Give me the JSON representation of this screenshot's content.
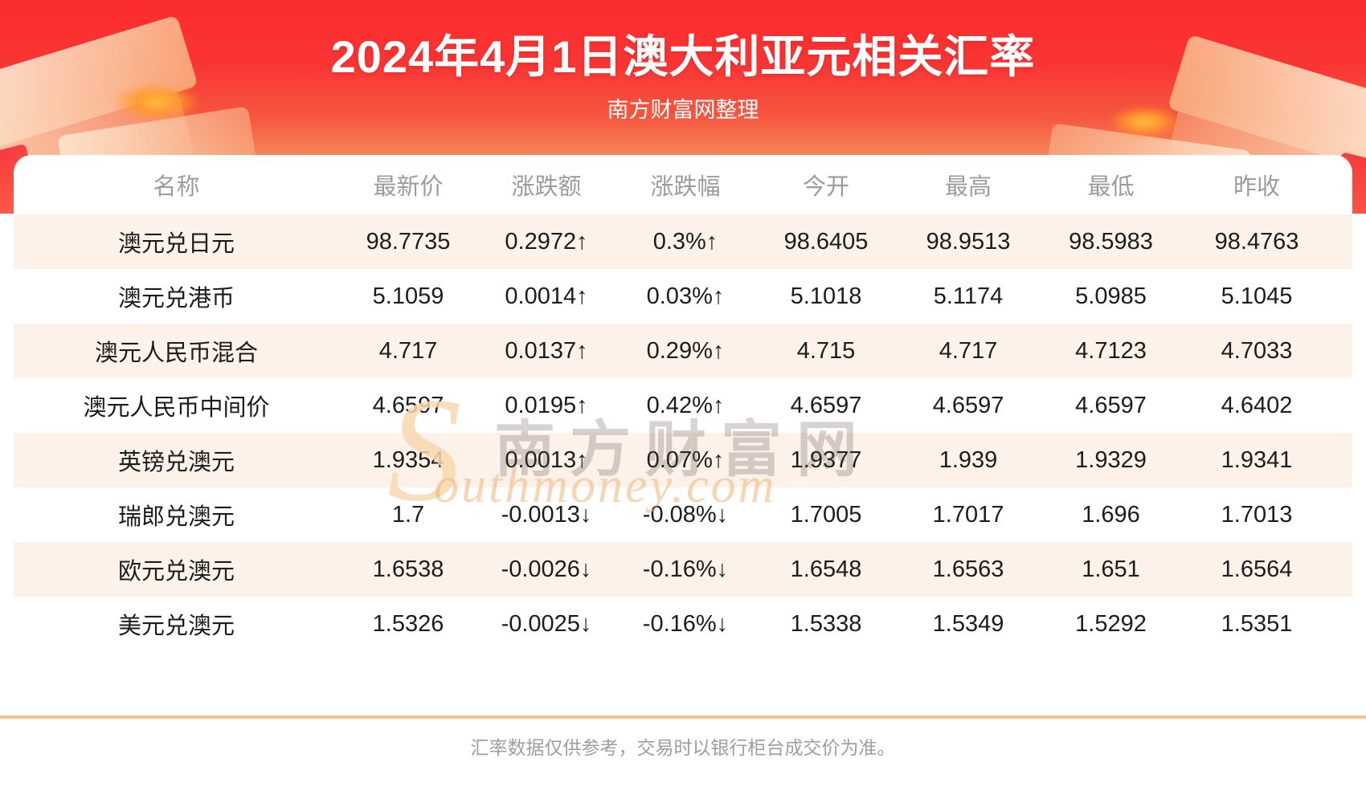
{
  "header": {
    "title": "2024年4月1日澳大利亚元相关汇率",
    "subtitle": "南方财富网整理"
  },
  "table": {
    "columns": [
      "名称",
      "最新价",
      "涨跌额",
      "涨跌幅",
      "今开",
      "最高",
      "最低",
      "昨收"
    ],
    "rows": [
      {
        "name": "澳元兑日元",
        "latest": "98.7735",
        "change": "0.2972↑",
        "change_pct": "0.3%↑",
        "open": "98.6405",
        "high": "98.9513",
        "low": "98.5983",
        "prev_close": "98.4763",
        "trend": "up"
      },
      {
        "name": "澳元兑港币",
        "latest": "5.1059",
        "change": "0.0014↑",
        "change_pct": "0.03%↑",
        "open": "5.1018",
        "high": "5.1174",
        "low": "5.0985",
        "prev_close": "5.1045",
        "trend": "up"
      },
      {
        "name": "澳元人民币混合",
        "latest": "4.717",
        "change": "0.0137↑",
        "change_pct": "0.29%↑",
        "open": "4.715",
        "high": "4.717",
        "low": "4.7123",
        "prev_close": "4.7033",
        "trend": "up"
      },
      {
        "name": "澳元人民币中间价",
        "latest": "4.6597",
        "change": "0.0195↑",
        "change_pct": "0.42%↑",
        "open": "4.6597",
        "high": "4.6597",
        "low": "4.6597",
        "prev_close": "4.6402",
        "trend": "up"
      },
      {
        "name": "英镑兑澳元",
        "latest": "1.9354",
        "change": "0.0013↑",
        "change_pct": "0.07%↑",
        "open": "1.9377",
        "high": "1.939",
        "low": "1.9329",
        "prev_close": "1.9341",
        "trend": "up"
      },
      {
        "name": "瑞郎兑澳元",
        "latest": "1.7",
        "change": "-0.0013↓",
        "change_pct": "-0.08%↓",
        "open": "1.7005",
        "high": "1.7017",
        "low": "1.696",
        "prev_close": "1.7013",
        "trend": "down"
      },
      {
        "name": "欧元兑澳元",
        "latest": "1.6538",
        "change": "-0.0026↓",
        "change_pct": "-0.16%↓",
        "open": "1.6548",
        "high": "1.6563",
        "low": "1.651",
        "prev_close": "1.6564",
        "trend": "down"
      },
      {
        "name": "美元兑澳元",
        "latest": "1.5326",
        "change": "-0.0025↓",
        "change_pct": "-0.16%↓",
        "open": "1.5338",
        "high": "1.5349",
        "low": "1.5292",
        "prev_close": "1.5351",
        "trend": "down"
      }
    ]
  },
  "chart_data": {
    "type": "table",
    "title": "2024年4月1日澳大利亚元相关汇率",
    "subtitle": "南方财富网整理",
    "columns": [
      "名称",
      "最新价",
      "涨跌额",
      "涨跌幅",
      "今开",
      "最高",
      "最低",
      "昨收"
    ],
    "rows": [
      [
        "澳元兑日元",
        98.7735,
        0.2972,
        "0.3%",
        98.6405,
        98.9513,
        98.5983,
        98.4763
      ],
      [
        "澳元兑港币",
        5.1059,
        0.0014,
        "0.03%",
        5.1018,
        5.1174,
        5.0985,
        5.1045
      ],
      [
        "澳元人民币混合",
        4.717,
        0.0137,
        "0.29%",
        4.715,
        4.717,
        4.7123,
        4.7033
      ],
      [
        "澳元人民币中间价",
        4.6597,
        0.0195,
        "0.42%",
        4.6597,
        4.6597,
        4.6597,
        4.6402
      ],
      [
        "英镑兑澳元",
        1.9354,
        0.0013,
        "0.07%",
        1.9377,
        1.939,
        1.9329,
        1.9341
      ],
      [
        "瑞郎兑澳元",
        1.7,
        -0.0013,
        "-0.08%",
        1.7005,
        1.7017,
        1.696,
        1.7013
      ],
      [
        "欧元兑澳元",
        1.6538,
        -0.0026,
        "-0.16%",
        1.6548,
        1.6563,
        1.651,
        1.6564
      ],
      [
        "美元兑澳元",
        1.5326,
        -0.0025,
        "-0.16%",
        1.5338,
        1.5349,
        1.5292,
        1.5351
      ]
    ]
  },
  "watermark": {
    "s": "S",
    "cn": "南方财富网",
    "en": "outhmoney.com"
  },
  "footer": {
    "disclaimer": "汇率数据仅供参考，交易时以银行柜台成交价为准。"
  },
  "colors": {
    "up": "#f91111",
    "down": "#159015",
    "banner_top": "#fb2c2c",
    "banner_bottom": "#f9c98f",
    "row_alt_bg": "#fcf2ea",
    "divider": "#f6c58c",
    "header_text": "#9c9c9c",
    "footer_text": "#9e9e9e"
  }
}
